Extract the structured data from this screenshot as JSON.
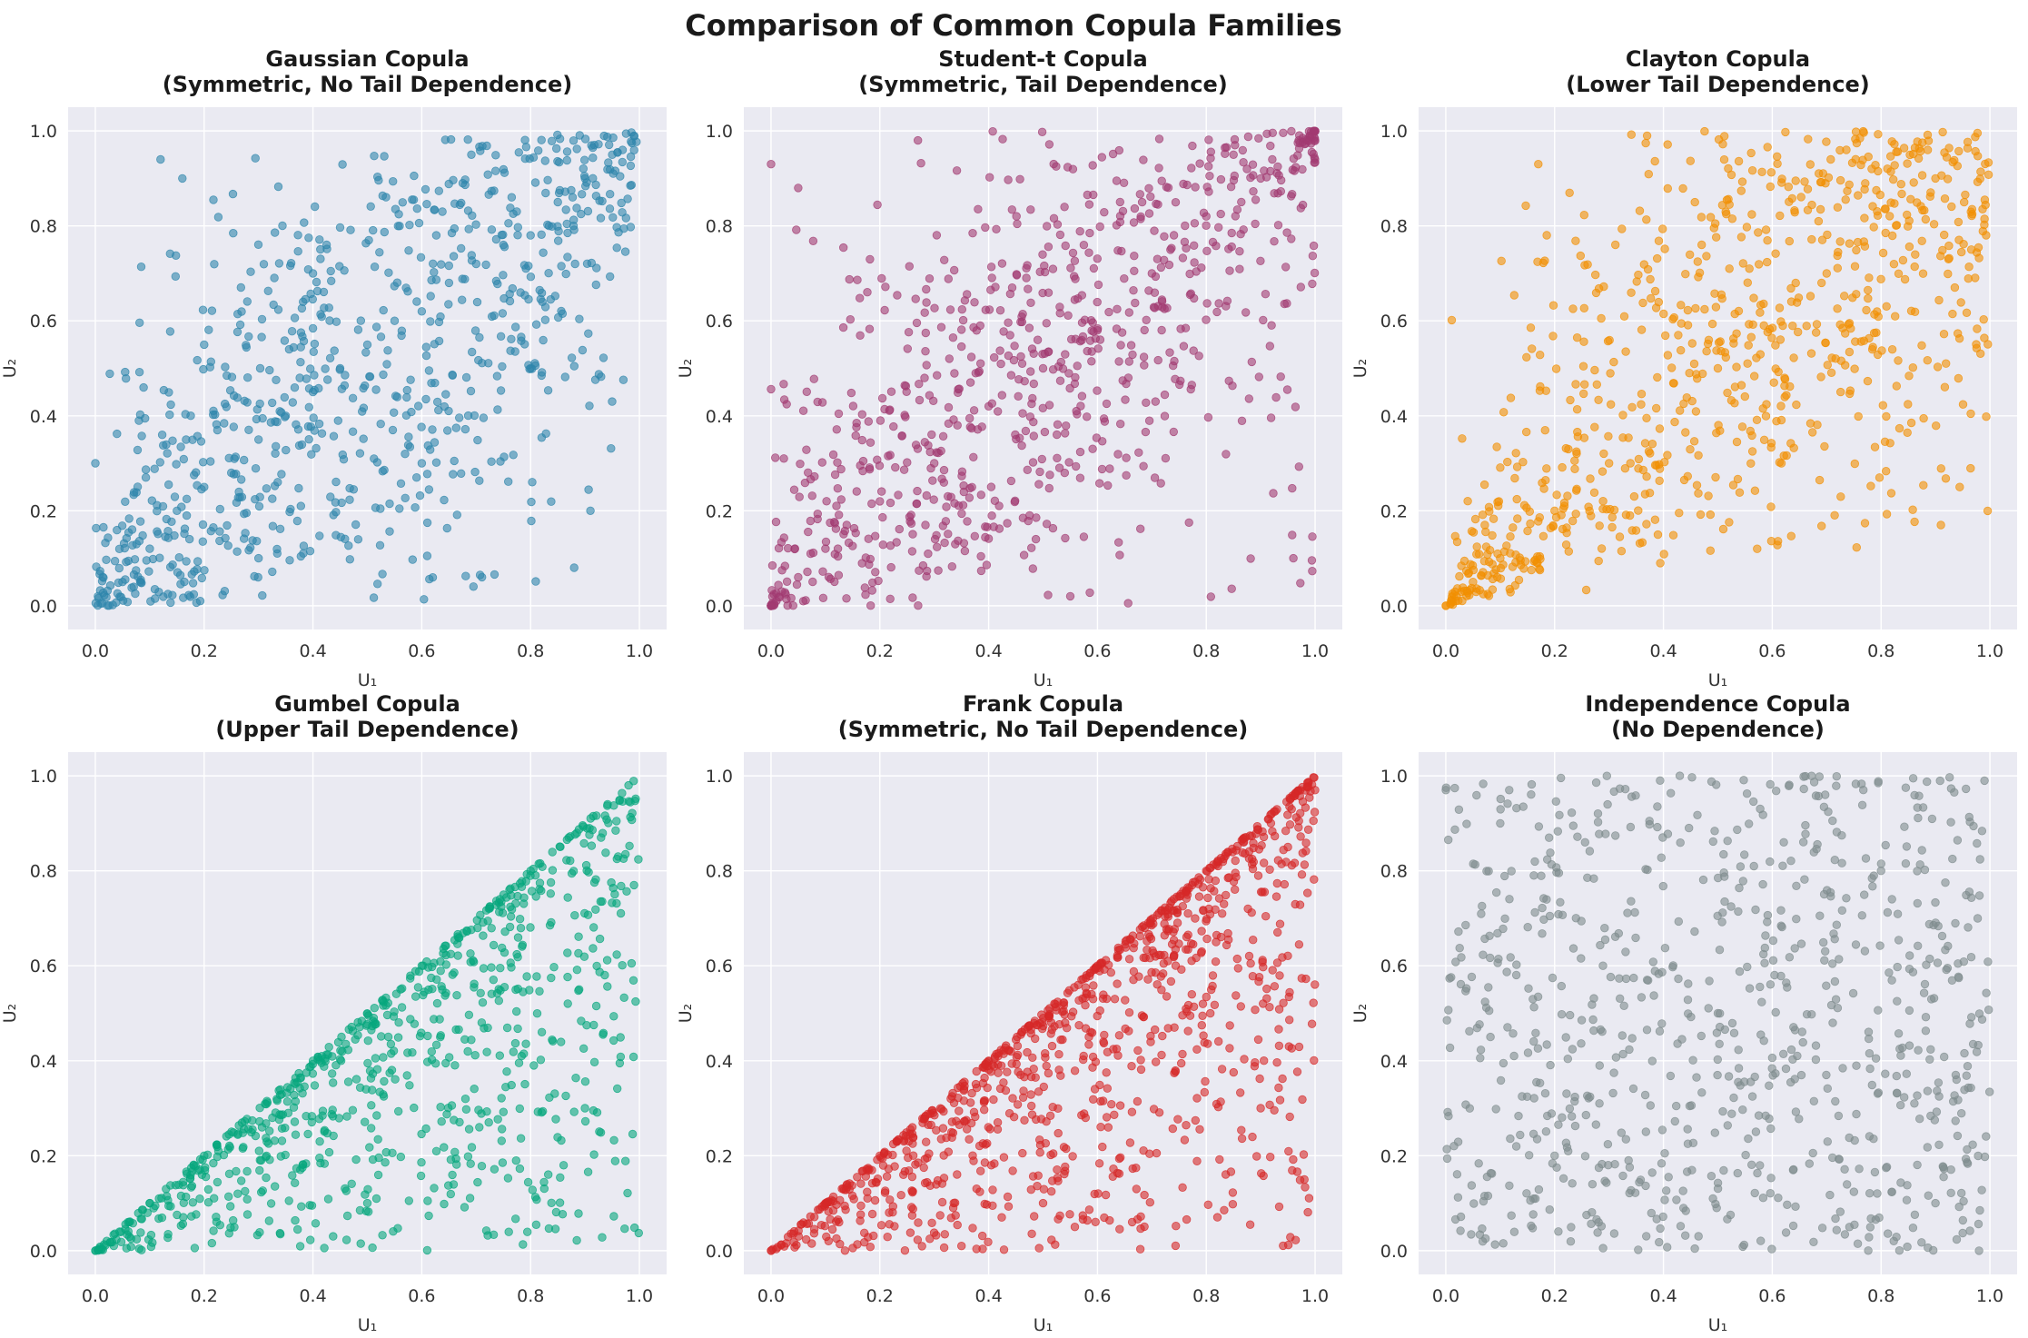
{
  "figure": {
    "title": "Comparison of Common Copula Families"
  },
  "chart_data": [
    {
      "type": "scatter",
      "title_line1": "Gaussian Copula",
      "title_line2": "(Symmetric, No Tail Dependence)",
      "xlabel": "U₁",
      "ylabel": "U₂",
      "xlim": [
        -0.05,
        1.05
      ],
      "ylim": [
        -0.05,
        1.05
      ],
      "xticks": [
        "0.0",
        "0.2",
        "0.4",
        "0.6",
        "0.8",
        "1.0"
      ],
      "yticks": [
        "0.0",
        "0.2",
        "0.4",
        "0.6",
        "0.8",
        "1.0"
      ],
      "grid": true,
      "color": "#2e86ab",
      "alpha": 0.6,
      "n_points": 800,
      "dependence": "gaussian",
      "points": [
        [
          0.05,
          0.05
        ],
        [
          0.1,
          0.12
        ],
        [
          0.15,
          0.2
        ],
        [
          0.2,
          0.25
        ],
        [
          0.25,
          0.28
        ],
        [
          0.3,
          0.35
        ],
        [
          0.35,
          0.4
        ],
        [
          0.4,
          0.45
        ],
        [
          0.45,
          0.5
        ],
        [
          0.5,
          0.55
        ],
        [
          0.55,
          0.6
        ],
        [
          0.6,
          0.62
        ],
        [
          0.65,
          0.68
        ],
        [
          0.7,
          0.72
        ],
        [
          0.75,
          0.76
        ],
        [
          0.8,
          0.78
        ],
        [
          0.85,
          0.85
        ],
        [
          0.9,
          0.9
        ],
        [
          0.95,
          0.95
        ],
        [
          0.99,
          0.99
        ],
        [
          0.12,
          0.94
        ],
        [
          0.16,
          0.9
        ],
        [
          0.88,
          0.08
        ],
        [
          0.91,
          0.2
        ],
        [
          0.0,
          0.3
        ],
        [
          0.2,
          0.55
        ],
        [
          0.4,
          0.7
        ],
        [
          0.6,
          0.3
        ],
        [
          0.8,
          0.5
        ],
        [
          0.3,
          0.1
        ]
      ]
    },
    {
      "type": "scatter",
      "title_line1": "Student-t Copula",
      "title_line2": "(Symmetric, Tail Dependence)",
      "xlabel": "U₁",
      "ylabel": "U₂",
      "xlim": [
        -0.05,
        1.05
      ],
      "ylim": [
        -0.05,
        1.05
      ],
      "xticks": [
        "0.0",
        "0.2",
        "0.4",
        "0.6",
        "0.8",
        "1.0"
      ],
      "yticks": [
        "0.0",
        "0.2",
        "0.4",
        "0.6",
        "0.8",
        "1.0"
      ],
      "grid": true,
      "color": "#a23b72",
      "alpha": 0.6,
      "n_points": 800,
      "dependence": "student-t",
      "points": [
        [
          0.01,
          0.01
        ],
        [
          0.02,
          0.03
        ],
        [
          0.05,
          0.06
        ],
        [
          0.1,
          0.12
        ],
        [
          0.2,
          0.22
        ],
        [
          0.3,
          0.3
        ],
        [
          0.4,
          0.42
        ],
        [
          0.5,
          0.5
        ],
        [
          0.6,
          0.58
        ],
        [
          0.7,
          0.7
        ],
        [
          0.8,
          0.82
        ],
        [
          0.9,
          0.9
        ],
        [
          0.97,
          0.98
        ],
        [
          0.99,
          0.99
        ],
        [
          0.0,
          0.93
        ],
        [
          0.05,
          0.88
        ],
        [
          0.27,
          0.98
        ],
        [
          0.96,
          0.1
        ],
        [
          0.55,
          0.02
        ],
        [
          0.85,
          0.95
        ]
      ]
    },
    {
      "type": "scatter",
      "title_line1": "Clayton Copula",
      "title_line2": "(Lower Tail Dependence)",
      "xlabel": "U₁",
      "ylabel": "U₂",
      "xlim": [
        -0.05,
        1.05
      ],
      "ylim": [
        -0.05,
        1.05
      ],
      "xticks": [
        "0.0",
        "0.2",
        "0.4",
        "0.6",
        "0.8",
        "1.0"
      ],
      "yticks": [
        "0.0",
        "0.2",
        "0.4",
        "0.6",
        "0.8",
        "1.0"
      ],
      "grid": true,
      "color": "#f18f01",
      "alpha": 0.6,
      "n_points": 800,
      "dependence": "clayton",
      "points": [
        [
          0.0,
          0.0
        ],
        [
          0.01,
          0.01
        ],
        [
          0.02,
          0.02
        ],
        [
          0.05,
          0.05
        ],
        [
          0.1,
          0.1
        ],
        [
          0.2,
          0.2
        ],
        [
          0.3,
          0.3
        ],
        [
          0.5,
          0.5
        ],
        [
          0.7,
          0.7
        ],
        [
          0.9,
          0.9
        ],
        [
          0.91,
          0.17
        ],
        [
          0.37,
          0.99
        ],
        [
          0.17,
          0.93
        ]
      ]
    },
    {
      "type": "scatter",
      "title_line1": "Gumbel Copula",
      "title_line2": "(Upper Tail Dependence)",
      "xlabel": "U₁",
      "ylabel": "U₂",
      "xlim": [
        -0.05,
        1.05
      ],
      "ylim": [
        -0.05,
        1.05
      ],
      "xticks": [
        "0.0",
        "0.2",
        "0.4",
        "0.6",
        "0.8",
        "1.0"
      ],
      "yticks": [
        "0.0",
        "0.2",
        "0.4",
        "0.6",
        "0.8",
        "1.0"
      ],
      "grid": true,
      "color": "#06a77d",
      "alpha": 0.6,
      "n_points": 800,
      "dependence": "gumbel",
      "points": [
        [
          0.0,
          0.0
        ],
        [
          0.1,
          0.1
        ],
        [
          0.2,
          0.2
        ],
        [
          0.4,
          0.4
        ],
        [
          0.6,
          0.6
        ],
        [
          0.8,
          0.8
        ],
        [
          0.98,
          0.98
        ],
        [
          0.5,
          0.1
        ],
        [
          0.9,
          0.3
        ],
        [
          0.99,
          0.77
        ]
      ]
    },
    {
      "type": "scatter",
      "title_line1": "Frank Copula",
      "title_line2": "(Symmetric, No Tail Dependence)",
      "xlabel": "U₁",
      "ylabel": "U₂",
      "xlim": [
        -0.05,
        1.05
      ],
      "ylim": [
        -0.05,
        1.05
      ],
      "xticks": [
        "0.0",
        "0.2",
        "0.4",
        "0.6",
        "0.8",
        "1.0"
      ],
      "yticks": [
        "0.0",
        "0.2",
        "0.4",
        "0.6",
        "0.8",
        "1.0"
      ],
      "grid": true,
      "color": "#d62828",
      "alpha": 0.6,
      "n_points": 1000,
      "dependence": "frank",
      "points": [
        [
          0.0,
          0.0
        ],
        [
          0.1,
          0.1
        ],
        [
          0.2,
          0.2
        ],
        [
          0.4,
          0.4
        ],
        [
          0.6,
          0.6
        ],
        [
          0.8,
          0.8
        ],
        [
          1.0,
          0.97
        ],
        [
          0.5,
          0.1
        ],
        [
          0.9,
          0.3
        ],
        [
          0.95,
          0.85
        ]
      ]
    },
    {
      "type": "scatter",
      "title_line1": "Independence Copula",
      "title_line2": "(No Dependence)",
      "xlabel": "U₁",
      "ylabel": "U₂",
      "xlim": [
        -0.05,
        1.05
      ],
      "ylim": [
        -0.05,
        1.05
      ],
      "xticks": [
        "0.0",
        "0.2",
        "0.4",
        "0.6",
        "0.8",
        "1.0"
      ],
      "yticks": [
        "0.0",
        "0.2",
        "0.4",
        "0.6",
        "0.8",
        "1.0"
      ],
      "grid": true,
      "color": "#7f8c8d",
      "alpha": 0.6,
      "n_points": 800,
      "dependence": "independence",
      "points": [
        [
          0.0,
          0.97
        ],
        [
          0.43,
          1.0
        ],
        [
          0.99,
          0.99
        ],
        [
          0.5,
          0.5
        ],
        [
          0.2,
          0.2
        ],
        [
          0.8,
          0.8
        ],
        [
          0.1,
          0.9
        ],
        [
          0.9,
          0.1
        ],
        [
          0.98,
          0.0
        ]
      ]
    }
  ]
}
